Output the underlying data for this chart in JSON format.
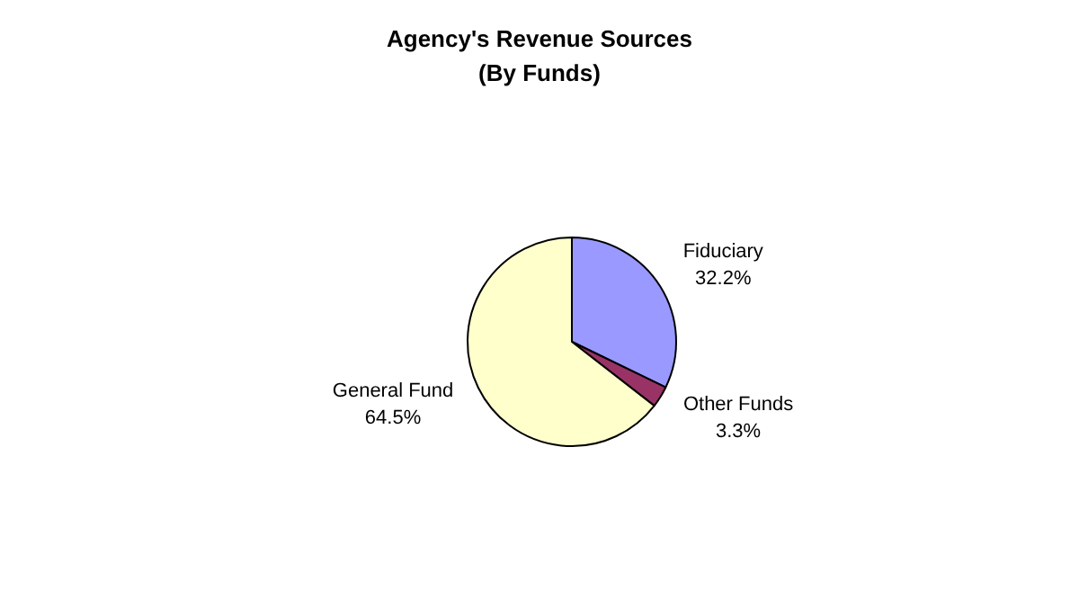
{
  "chart_data": {
    "type": "pie",
    "title": "Agency's Revenue Sources",
    "subtitle": "(By Funds)",
    "categories": [
      "Fiduciary",
      "Other Funds",
      "General Fund"
    ],
    "values": [
      32.2,
      3.3,
      64.5
    ],
    "colors": [
      "#9999ff",
      "#993366",
      "#ffffcc"
    ],
    "value_labels": [
      "32.2%",
      "3.3%",
      "64.5%"
    ],
    "legend": false
  }
}
